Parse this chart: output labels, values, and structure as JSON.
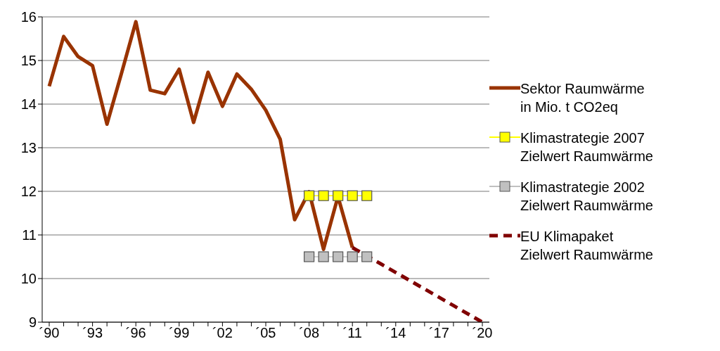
{
  "chart_data": {
    "type": "line",
    "categories": [
      "´90",
      null,
      null,
      "´93",
      null,
      null,
      "´96",
      null,
      null,
      "´99",
      null,
      null,
      "´02",
      null,
      null,
      "´05",
      null,
      null,
      "´08",
      null,
      null,
      "´11",
      null,
      null,
      "´14",
      null,
      null,
      "´17",
      null,
      null,
      "´20"
    ],
    "series": [
      {
        "name": "Sektor Raumwärme\nin Mio. t CO2eq",
        "color": "#993300",
        "marker": "none",
        "line_style": "solid",
        "values": [
          14.41,
          15.55,
          15.09,
          14.88,
          13.54,
          14.7,
          15.89,
          14.32,
          14.24,
          14.8,
          13.58,
          14.73,
          13.95,
          14.69,
          14.34,
          13.86,
          13.19,
          11.35,
          11.99,
          10.67,
          11.88,
          10.71,
          null,
          null,
          null,
          null,
          null,
          null,
          null,
          null,
          null
        ]
      },
      {
        "name": "Klimastrategie 2007\nZielwert Raumwärme",
        "color": "#ffff00",
        "marker": "square",
        "line_style": "solid",
        "values": [
          null,
          null,
          null,
          null,
          null,
          null,
          null,
          null,
          null,
          null,
          null,
          null,
          null,
          null,
          null,
          null,
          null,
          null,
          11.9,
          11.9,
          11.9,
          11.9,
          11.9,
          null,
          null,
          null,
          null,
          null,
          null,
          null,
          null
        ]
      },
      {
        "name": "Klimastrategie 2002\nZielwert Raumwärme",
        "color": "#c0c0c0",
        "marker": "square",
        "line_style": "solid",
        "values": [
          null,
          null,
          null,
          null,
          null,
          null,
          null,
          null,
          null,
          null,
          null,
          null,
          null,
          null,
          null,
          null,
          null,
          null,
          10.5,
          10.5,
          10.5,
          10.5,
          10.5,
          null,
          null,
          null,
          null,
          null,
          null,
          null,
          null
        ]
      },
      {
        "name": "EU Klimapaket\nZielwert Raumwärme",
        "color": "#800000",
        "marker": "none",
        "line_style": "dashed",
        "values": [
          null,
          null,
          null,
          null,
          null,
          null,
          null,
          null,
          null,
          null,
          null,
          null,
          null,
          null,
          null,
          null,
          null,
          null,
          null,
          null,
          null,
          10.71,
          10.52,
          10.33,
          10.14,
          9.95,
          9.76,
          9.57,
          9.38,
          9.19,
          9.0
        ]
      }
    ],
    "ylim": [
      9,
      16
    ],
    "yticks": [
      9,
      10,
      11,
      12,
      13,
      14,
      15,
      16
    ],
    "grid": "y",
    "legend": "right"
  }
}
